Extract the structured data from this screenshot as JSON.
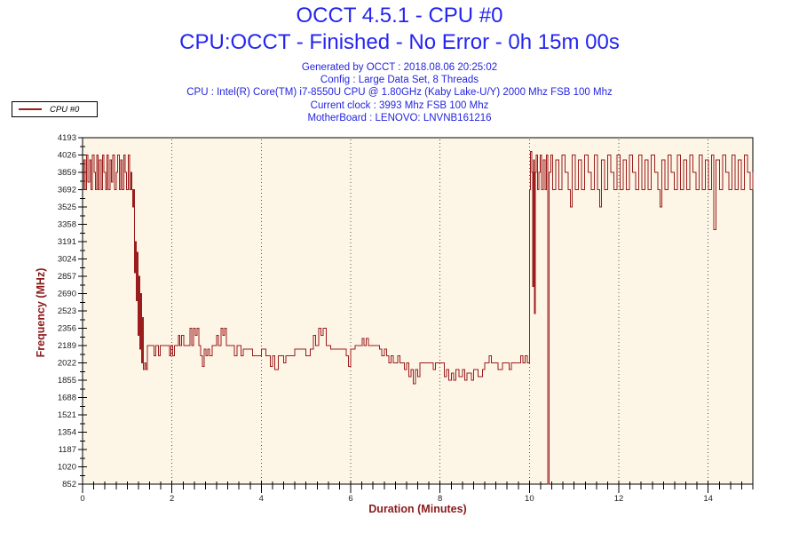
{
  "header": {
    "title": "OCCT 4.5.1 - CPU #0",
    "subtitle": "CPU:OCCT - Finished - No Error - 0h 15m 00s",
    "meta_lines": [
      "Generated by OCCT : 2018.08.06 20:25:02",
      "Config : Large Data Set, 8 Threads",
      "CPU : Intel(R) Core(TM) i7-8550U CPU @ 1.80GHz (Kaby Lake-U/Y) 2000 Mhz FSB 100 Mhz",
      "Current clock : 3993 Mhz FSB 100 Mhz",
      "MotherBoard : LENOVO: LNVNB161216"
    ]
  },
  "legend": {
    "label": "CPU #0",
    "line_color": "#9b1c1c"
  },
  "colors": {
    "title_blue": "#2525f0",
    "axis_title_red": "#8b1a1a",
    "line_red": "#9b1c1c",
    "plot_background": "#fdf5e6",
    "frame": "#000000",
    "gridline": "#555555",
    "tick_label": "#222222"
  },
  "chart_data": {
    "type": "line",
    "title": "OCCT 4.5.1 - CPU #0",
    "subtitle": "CPU:OCCT - Finished - No Error - 0h 15m 00s",
    "xlabel": "Duration (Minutes)",
    "ylabel": "Frequency (MHz)",
    "xlim": [
      0,
      15
    ],
    "ylim": [
      852,
      4193
    ],
    "x_tick_labels": [
      0,
      2,
      4,
      6,
      8,
      10,
      12,
      14
    ],
    "x_minor_tick_step": 0.25,
    "y_tick_labels": [
      4193,
      4026,
      3859,
      3692,
      3525,
      3358,
      3191,
      3024,
      2857,
      2690,
      2523,
      2356,
      2189,
      2022,
      1855,
      1688,
      1521,
      1354,
      1187,
      1020,
      852
    ],
    "grid_vertical_at": [
      2,
      4,
      6,
      8,
      10,
      12,
      14
    ],
    "grid_style": "dotted",
    "legend_position": "top-left",
    "series": [
      {
        "name": "CPU #0",
        "color": "#9b1c1c",
        "interpolation": "step-after",
        "points": [
          [
            0,
            3692
          ],
          [
            0.03,
            3977
          ],
          [
            0.06,
            3692
          ],
          [
            0.09,
            4026
          ],
          [
            0.12,
            3766
          ],
          [
            0.16,
            3977
          ],
          [
            0.19,
            3692
          ],
          [
            0.22,
            4026
          ],
          [
            0.26,
            3859
          ],
          [
            0.29,
            3692
          ],
          [
            0.32,
            4026
          ],
          [
            0.35,
            3692
          ],
          [
            0.38,
            3977
          ],
          [
            0.42,
            3692
          ],
          [
            0.45,
            4026
          ],
          [
            0.48,
            3859
          ],
          [
            0.52,
            3692
          ],
          [
            0.55,
            4026
          ],
          [
            0.58,
            3692
          ],
          [
            0.62,
            3977
          ],
          [
            0.65,
            3766
          ],
          [
            0.68,
            4026
          ],
          [
            0.72,
            3692
          ],
          [
            0.75,
            3859
          ],
          [
            0.78,
            4026
          ],
          [
            0.82,
            3692
          ],
          [
            0.85,
            3977
          ],
          [
            0.88,
            3692
          ],
          [
            0.92,
            4026
          ],
          [
            0.95,
            3859
          ],
          [
            0.98,
            3692
          ],
          [
            1.02,
            4026
          ],
          [
            1.05,
            3692
          ],
          [
            1.08,
            3859
          ],
          [
            1.1,
            3692
          ],
          [
            1.12,
            3525
          ],
          [
            1.14,
            3692
          ],
          [
            1.16,
            2890
          ],
          [
            1.18,
            3191
          ],
          [
            1.2,
            2623
          ],
          [
            1.22,
            3090
          ],
          [
            1.24,
            2289
          ],
          [
            1.26,
            2857
          ],
          [
            1.28,
            2156
          ],
          [
            1.3,
            2690
          ],
          [
            1.32,
            2022
          ],
          [
            1.34,
            2460
          ],
          [
            1.36,
            1955
          ],
          [
            1.39,
            2022
          ],
          [
            1.42,
            1955
          ],
          [
            1.45,
            2189
          ],
          [
            1.6,
            2089
          ],
          [
            1.64,
            2189
          ],
          [
            1.7,
            2089
          ],
          [
            1.74,
            2189
          ],
          [
            1.95,
            2089
          ],
          [
            1.98,
            2189
          ],
          [
            2.02,
            2089
          ],
          [
            2.06,
            2189
          ],
          [
            2.15,
            2289
          ],
          [
            2.18,
            2189
          ],
          [
            2.22,
            2289
          ],
          [
            2.26,
            2189
          ],
          [
            2.4,
            2356
          ],
          [
            2.44,
            2189
          ],
          [
            2.48,
            2356
          ],
          [
            2.52,
            2289
          ],
          [
            2.56,
            2356
          ],
          [
            2.6,
            2189
          ],
          [
            2.64,
            2089
          ],
          [
            2.68,
            1989
          ],
          [
            2.72,
            2156
          ],
          [
            2.76,
            2089
          ],
          [
            2.8,
            2156
          ],
          [
            2.84,
            2089
          ],
          [
            2.9,
            2189
          ],
          [
            3.0,
            2289
          ],
          [
            3.04,
            2189
          ],
          [
            3.1,
            2356
          ],
          [
            3.14,
            2289
          ],
          [
            3.18,
            2356
          ],
          [
            3.22,
            2189
          ],
          [
            3.4,
            2089
          ],
          [
            3.46,
            2189
          ],
          [
            3.55,
            2089
          ],
          [
            3.6,
            2156
          ],
          [
            3.8,
            2089
          ],
          [
            4.0,
            2156
          ],
          [
            4.1,
            2089
          ],
          [
            4.2,
            1989
          ],
          [
            4.25,
            2089
          ],
          [
            4.3,
            1955
          ],
          [
            4.38,
            2089
          ],
          [
            4.5,
            2022
          ],
          [
            4.55,
            2089
          ],
          [
            4.75,
            2156
          ],
          [
            5.0,
            2089
          ],
          [
            5.1,
            2156
          ],
          [
            5.17,
            2289
          ],
          [
            5.22,
            2189
          ],
          [
            5.28,
            2356
          ],
          [
            5.33,
            2289
          ],
          [
            5.38,
            2356
          ],
          [
            5.45,
            2189
          ],
          [
            5.55,
            2156
          ],
          [
            5.9,
            2089
          ],
          [
            5.95,
            1989
          ],
          [
            6.0,
            2156
          ],
          [
            6.1,
            2189
          ],
          [
            6.26,
            2256
          ],
          [
            6.3,
            2189
          ],
          [
            6.35,
            2256
          ],
          [
            6.4,
            2189
          ],
          [
            6.65,
            2156
          ],
          [
            6.7,
            2089
          ],
          [
            6.75,
            2156
          ],
          [
            6.8,
            2089
          ],
          [
            6.85,
            2022
          ],
          [
            6.9,
            2089
          ],
          [
            6.95,
            2022
          ],
          [
            7.05,
            2089
          ],
          [
            7.1,
            2022
          ],
          [
            7.2,
            1955
          ],
          [
            7.25,
            2022
          ],
          [
            7.3,
            1889
          ],
          [
            7.35,
            1955
          ],
          [
            7.4,
            1822
          ],
          [
            7.45,
            1955
          ],
          [
            7.5,
            1889
          ],
          [
            7.55,
            2022
          ],
          [
            7.85,
            1955
          ],
          [
            7.9,
            2022
          ],
          [
            8.1,
            1889
          ],
          [
            8.15,
            1955
          ],
          [
            8.2,
            1855
          ],
          [
            8.25,
            1922
          ],
          [
            8.3,
            1855
          ],
          [
            8.35,
            1955
          ],
          [
            8.42,
            1889
          ],
          [
            8.5,
            1955
          ],
          [
            8.55,
            1855
          ],
          [
            8.6,
            1922
          ],
          [
            8.7,
            1855
          ],
          [
            8.75,
            1955
          ],
          [
            8.85,
            1889
          ],
          [
            8.95,
            1955
          ],
          [
            9.0,
            2022
          ],
          [
            9.1,
            2089
          ],
          [
            9.15,
            2022
          ],
          [
            9.3,
            1955
          ],
          [
            9.4,
            2022
          ],
          [
            9.55,
            1955
          ],
          [
            9.6,
            2022
          ],
          [
            9.8,
            2089
          ],
          [
            9.85,
            2022
          ],
          [
            9.9,
            2089
          ],
          [
            9.95,
            2022
          ],
          [
            10.0,
            3692
          ],
          [
            10.02,
            4059
          ],
          [
            10.05,
            3859
          ],
          [
            10.07,
            2757
          ],
          [
            10.09,
            3977
          ],
          [
            10.11,
            2497
          ],
          [
            10.13,
            3859
          ],
          [
            10.15,
            4026
          ],
          [
            10.18,
            3692
          ],
          [
            10.21,
            3859
          ],
          [
            10.24,
            4026
          ],
          [
            10.27,
            3692
          ],
          [
            10.31,
            3977
          ],
          [
            10.35,
            3692
          ],
          [
            10.38,
            4026
          ],
          [
            10.41,
            852
          ],
          [
            10.44,
            3859
          ],
          [
            10.48,
            4026
          ],
          [
            10.52,
            3692
          ],
          [
            10.59,
            3977
          ],
          [
            10.66,
            3692
          ],
          [
            10.73,
            4026
          ],
          [
            10.8,
            3859
          ],
          [
            10.87,
            3692
          ],
          [
            10.92,
            3525
          ],
          [
            10.96,
            4026
          ],
          [
            11.03,
            3692
          ],
          [
            11.1,
            3977
          ],
          [
            11.17,
            3692
          ],
          [
            11.24,
            4026
          ],
          [
            11.31,
            3859
          ],
          [
            11.38,
            3692
          ],
          [
            11.45,
            4026
          ],
          [
            11.52,
            3692
          ],
          [
            11.57,
            3525
          ],
          [
            11.61,
            3977
          ],
          [
            11.68,
            3692
          ],
          [
            11.75,
            4026
          ],
          [
            11.82,
            3859
          ],
          [
            11.89,
            3692
          ],
          [
            11.96,
            4026
          ],
          [
            12.03,
            3692
          ],
          [
            12.1,
            3977
          ],
          [
            12.17,
            3692
          ],
          [
            12.24,
            4026
          ],
          [
            12.31,
            3859
          ],
          [
            12.38,
            3692
          ],
          [
            12.45,
            4026
          ],
          [
            12.52,
            3692
          ],
          [
            12.59,
            3977
          ],
          [
            12.66,
            3692
          ],
          [
            12.73,
            4026
          ],
          [
            12.8,
            3859
          ],
          [
            12.87,
            3692
          ],
          [
            12.92,
            3525
          ],
          [
            12.96,
            3977
          ],
          [
            13.03,
            3692
          ],
          [
            13.1,
            4026
          ],
          [
            13.17,
            3859
          ],
          [
            13.24,
            3692
          ],
          [
            13.31,
            4026
          ],
          [
            13.38,
            3692
          ],
          [
            13.45,
            3977
          ],
          [
            13.52,
            3692
          ],
          [
            13.59,
            4026
          ],
          [
            13.66,
            3859
          ],
          [
            13.73,
            3692
          ],
          [
            13.8,
            4026
          ],
          [
            13.87,
            3692
          ],
          [
            13.94,
            3977
          ],
          [
            14.01,
            3692
          ],
          [
            14.08,
            4026
          ],
          [
            14.13,
            3308
          ],
          [
            14.18,
            3977
          ],
          [
            14.25,
            3692
          ],
          [
            14.32,
            4026
          ],
          [
            14.39,
            3859
          ],
          [
            14.46,
            3692
          ],
          [
            14.53,
            4026
          ],
          [
            14.6,
            3692
          ],
          [
            14.67,
            3977
          ],
          [
            14.74,
            3692
          ],
          [
            14.81,
            4026
          ],
          [
            14.88,
            3859
          ],
          [
            14.94,
            3692
          ],
          [
            15.0,
            3859
          ]
        ]
      }
    ]
  }
}
